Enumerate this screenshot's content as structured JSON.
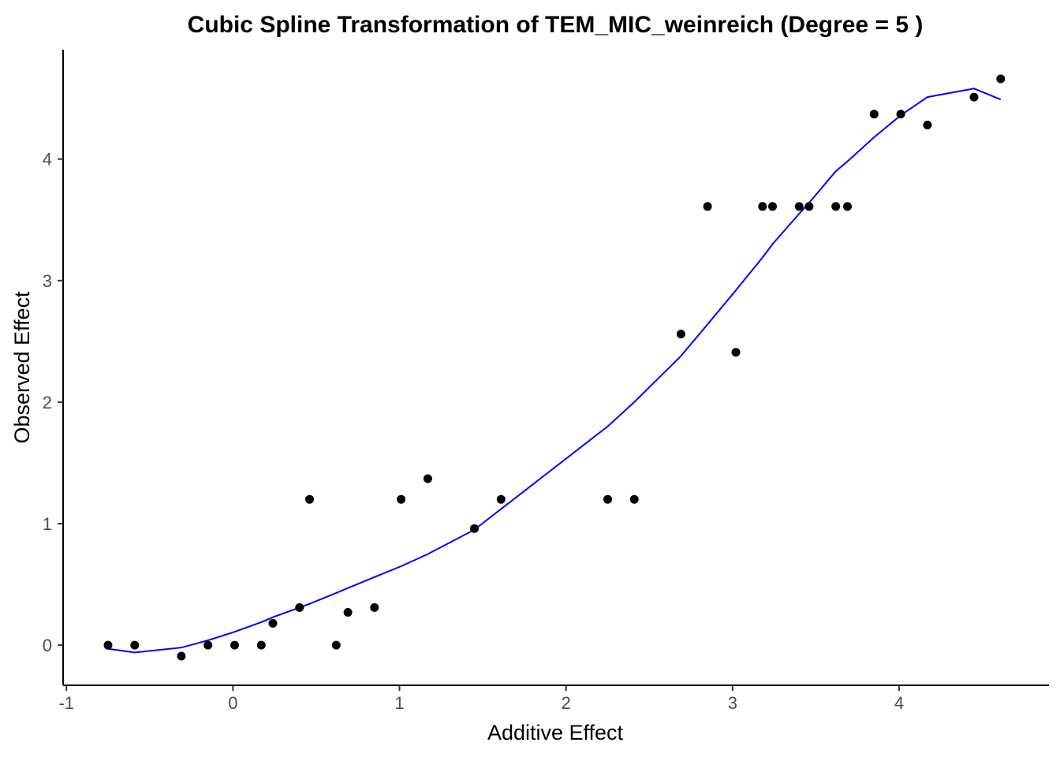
{
  "chart_data": {
    "type": "scatter",
    "title": "Cubic Spline Transformation of TEM_MIC_weinreich (Degree = 5 )",
    "xlabel": "Additive Effect",
    "ylabel": "Observed Effect",
    "xlim": [
      -1.02,
      4.9
    ],
    "ylim": [
      -0.33,
      4.9
    ],
    "grid": false,
    "legend": "none",
    "x_ticks": [
      -1,
      0,
      1,
      2,
      3,
      4
    ],
    "x_tick_labels": [
      "-1",
      "0",
      "1",
      "2",
      "3",
      "4"
    ],
    "y_ticks": [
      0,
      1,
      2,
      3,
      4
    ],
    "y_tick_labels": [
      "0",
      "1",
      "2",
      "3",
      "4"
    ],
    "colors": {
      "points": "#000000",
      "fit_line": "#0000ff"
    },
    "series": [
      {
        "kind": "points",
        "x": [
          -0.75,
          -0.59,
          -0.31,
          -0.15,
          0.01,
          0.17,
          0.24,
          0.4,
          0.46,
          0.62,
          0.69,
          0.85,
          1.01,
          1.17,
          1.45,
          1.61,
          2.25,
          2.41,
          2.69,
          2.85,
          3.02,
          3.18,
          3.24,
          3.4,
          3.46,
          3.62,
          3.69,
          3.85,
          4.01,
          4.17,
          4.45,
          4.61
        ],
        "y": [
          0.0,
          0.0,
          -0.09,
          0.0,
          0.0,
          0.0,
          0.18,
          0.31,
          1.2,
          0.0,
          0.27,
          0.31,
          1.2,
          1.37,
          0.96,
          1.2,
          1.2,
          1.2,
          2.56,
          3.61,
          2.41,
          3.61,
          3.61,
          3.61,
          3.61,
          3.61,
          3.61,
          4.37,
          4.37,
          4.28,
          4.51,
          4.66
        ]
      },
      {
        "kind": "line",
        "x": [
          -0.75,
          -0.59,
          -0.31,
          -0.15,
          0.01,
          0.17,
          0.24,
          0.4,
          0.46,
          0.62,
          0.69,
          0.85,
          1.01,
          1.17,
          1.45,
          1.61,
          2.25,
          2.41,
          2.69,
          2.85,
          3.02,
          3.18,
          3.24,
          3.4,
          3.46,
          3.62,
          3.69,
          3.85,
          4.01,
          4.17,
          4.45,
          4.61
        ],
        "y": [
          -0.03,
          -0.06,
          -0.02,
          0.04,
          0.11,
          0.19,
          0.23,
          0.31,
          0.34,
          0.43,
          0.47,
          0.56,
          0.65,
          0.75,
          0.95,
          1.12,
          1.8,
          2.0,
          2.38,
          2.64,
          2.92,
          3.19,
          3.3,
          3.55,
          3.64,
          3.9,
          3.98,
          4.18,
          4.36,
          4.51,
          4.58,
          4.49
        ]
      }
    ]
  }
}
